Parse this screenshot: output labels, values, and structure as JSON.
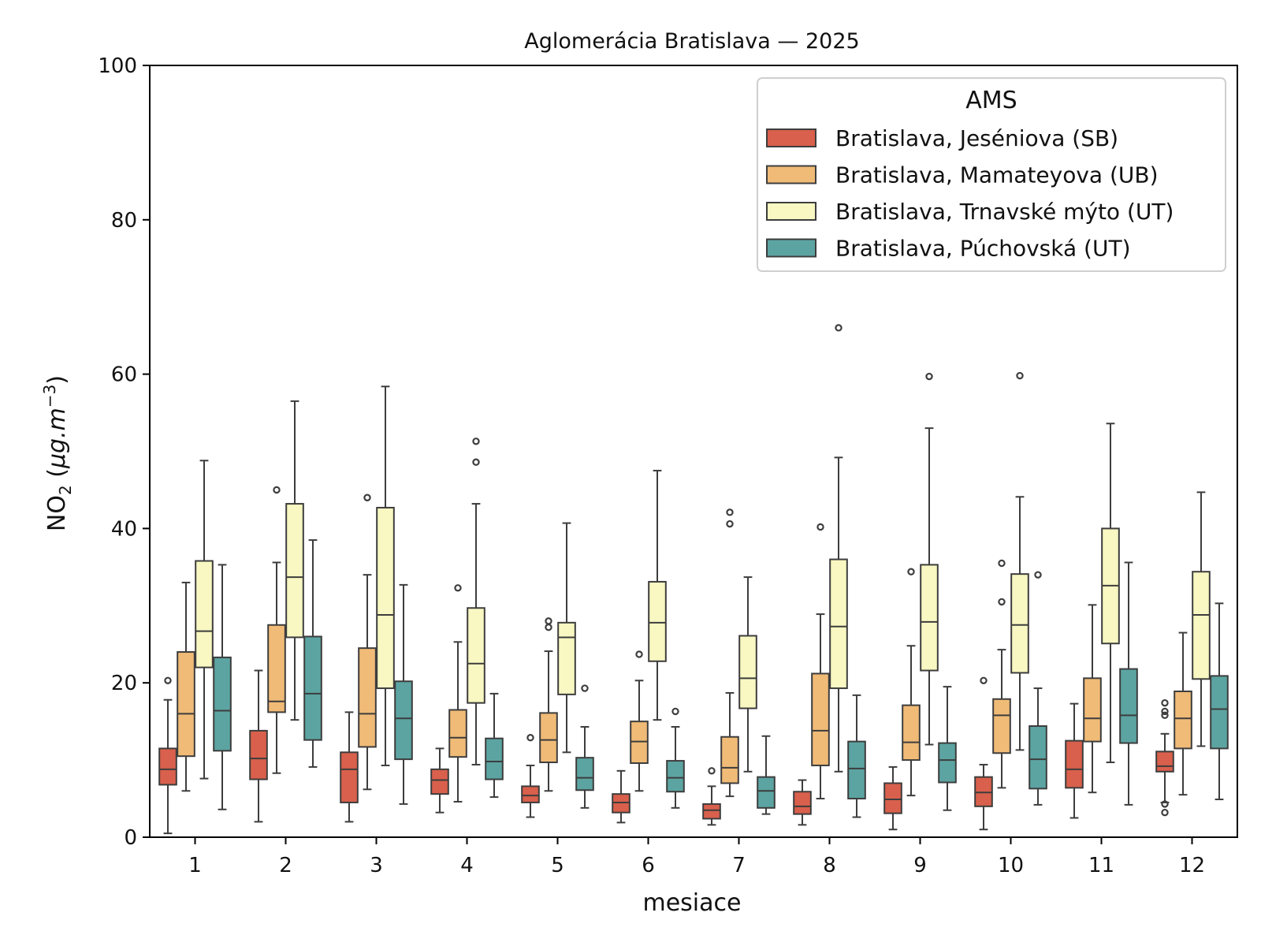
{
  "chart_data": {
    "type": "box",
    "title_main": "Aglomerácia Bratislava —",
    "title_year": "2025",
    "xlabel": "mesiace",
    "ylabel_main": "NO",
    "ylabel_sub": "2",
    "ylabel_unit_open": "(",
    "ylabel_unit_mu": "μ",
    "ylabel_unit_g": "g.",
    "ylabel_unit_m": "m",
    "ylabel_unit_exp": "−3",
    "ylabel_unit_close": ")",
    "ylim": [
      0,
      100
    ],
    "yticks": [
      "0",
      "20",
      "40",
      "60",
      "80",
      "100"
    ],
    "categories": [
      "1",
      "2",
      "3",
      "4",
      "5",
      "6",
      "7",
      "8",
      "9",
      "10",
      "11",
      "12"
    ],
    "legend": {
      "title": "AMS",
      "placement": "top-right"
    },
    "series": [
      {
        "name": "Bratislava, Jeséniova (SB)",
        "color": "#d9604c",
        "boxes": [
          {
            "whislo": 0.5,
            "q1": 6.8,
            "med": 8.8,
            "q3": 11.5,
            "whishi": 17.8,
            "fliers": [
              20.3
            ]
          },
          {
            "whislo": 2.0,
            "q1": 7.5,
            "med": 10.2,
            "q3": 13.8,
            "whishi": 21.6,
            "fliers": []
          },
          {
            "whislo": 2.0,
            "q1": 4.5,
            "med": 8.8,
            "q3": 11.0,
            "whishi": 16.2,
            "fliers": []
          },
          {
            "whislo": 3.2,
            "q1": 5.6,
            "med": 7.4,
            "q3": 8.8,
            "whishi": 11.5,
            "fliers": []
          },
          {
            "whislo": 2.6,
            "q1": 4.5,
            "med": 5.4,
            "q3": 6.6,
            "whishi": 9.3,
            "fliers": [
              12.9
            ]
          },
          {
            "whislo": 1.9,
            "q1": 3.2,
            "med": 4.5,
            "q3": 5.6,
            "whishi": 8.6,
            "fliers": []
          },
          {
            "whislo": 1.6,
            "q1": 2.4,
            "med": 3.5,
            "q3": 4.3,
            "whishi": 6.6,
            "fliers": [
              8.6
            ]
          },
          {
            "whislo": 1.6,
            "q1": 3.0,
            "med": 4.0,
            "q3": 5.9,
            "whishi": 7.4,
            "fliers": []
          },
          {
            "whislo": 1.0,
            "q1": 3.1,
            "med": 4.9,
            "q3": 7.0,
            "whishi": 9.1,
            "fliers": []
          },
          {
            "whislo": 1.0,
            "q1": 4.0,
            "med": 5.8,
            "q3": 7.8,
            "whishi": 9.4,
            "fliers": [
              20.3
            ]
          },
          {
            "whislo": 2.5,
            "q1": 6.4,
            "med": 8.8,
            "q3": 12.5,
            "whishi": 17.3,
            "fliers": []
          },
          {
            "whislo": 4.5,
            "q1": 8.5,
            "med": 9.2,
            "q3": 11.1,
            "whishi": 13.4,
            "fliers": [
              17.4,
              16.3,
              15.8,
              4.3,
              3.2
            ]
          }
        ]
      },
      {
        "name": "Bratislava, Mamateyova (UB)",
        "color": "#f0bb77",
        "boxes": [
          {
            "whislo": 6.0,
            "q1": 10.5,
            "med": 16.0,
            "q3": 24.0,
            "whishi": 33.0,
            "fliers": []
          },
          {
            "whislo": 8.3,
            "q1": 16.2,
            "med": 17.6,
            "q3": 27.5,
            "whishi": 35.6,
            "fliers": [
              45.0
            ]
          },
          {
            "whislo": 6.2,
            "q1": 11.7,
            "med": 16.0,
            "q3": 24.5,
            "whishi": 34.0,
            "fliers": [
              44.0
            ]
          },
          {
            "whislo": 4.6,
            "q1": 10.4,
            "med": 12.9,
            "q3": 16.5,
            "whishi": 25.3,
            "fliers": [
              32.3
            ]
          },
          {
            "whislo": 6.0,
            "q1": 9.7,
            "med": 12.6,
            "q3": 16.1,
            "whishi": 24.1,
            "fliers": [
              28.0,
              27.2
            ]
          },
          {
            "whislo": 6.0,
            "q1": 9.6,
            "med": 12.4,
            "q3": 15.0,
            "whishi": 20.3,
            "fliers": [
              23.7
            ]
          },
          {
            "whislo": 5.3,
            "q1": 7.0,
            "med": 9.0,
            "q3": 13.0,
            "whishi": 18.7,
            "fliers": [
              42.1,
              40.6
            ]
          },
          {
            "whislo": 5.0,
            "q1": 9.3,
            "med": 13.8,
            "q3": 21.2,
            "whishi": 28.9,
            "fliers": [
              40.2
            ]
          },
          {
            "whislo": 5.4,
            "q1": 10.0,
            "med": 12.3,
            "q3": 17.1,
            "whishi": 24.8,
            "fliers": [
              34.4
            ]
          },
          {
            "whislo": 6.4,
            "q1": 10.9,
            "med": 15.8,
            "q3": 17.9,
            "whishi": 24.3,
            "fliers": [
              35.5,
              30.5
            ]
          },
          {
            "whislo": 5.8,
            "q1": 12.4,
            "med": 15.4,
            "q3": 20.6,
            "whishi": 30.1,
            "fliers": []
          },
          {
            "whislo": 5.5,
            "q1": 11.5,
            "med": 15.4,
            "q3": 18.9,
            "whishi": 26.5,
            "fliers": []
          }
        ]
      },
      {
        "name": "Bratislava, Trnavské mýto (UT)",
        "color": "#f9f7c2",
        "boxes": [
          {
            "whislo": 7.6,
            "q1": 22.0,
            "med": 26.7,
            "q3": 35.8,
            "whishi": 48.8,
            "fliers": []
          },
          {
            "whislo": 15.2,
            "q1": 25.9,
            "med": 33.7,
            "q3": 43.2,
            "whishi": 56.5,
            "fliers": []
          },
          {
            "whislo": 9.3,
            "q1": 19.3,
            "med": 28.8,
            "q3": 42.7,
            "whishi": 58.4,
            "fliers": []
          },
          {
            "whislo": 9.4,
            "q1": 17.4,
            "med": 22.5,
            "q3": 29.7,
            "whishi": 43.2,
            "fliers": [
              51.3,
              48.6
            ]
          },
          {
            "whislo": 11.0,
            "q1": 18.5,
            "med": 25.9,
            "q3": 27.8,
            "whishi": 40.7,
            "fliers": []
          },
          {
            "whislo": 15.2,
            "q1": 22.8,
            "med": 27.8,
            "q3": 33.1,
            "whishi": 47.5,
            "fliers": []
          },
          {
            "whislo": 8.5,
            "q1": 16.7,
            "med": 20.6,
            "q3": 26.1,
            "whishi": 33.7,
            "fliers": []
          },
          {
            "whislo": 8.5,
            "q1": 19.3,
            "med": 27.3,
            "q3": 36.0,
            "whishi": 49.2,
            "fliers": [
              66.0
            ]
          },
          {
            "whislo": 12.0,
            "q1": 21.6,
            "med": 27.9,
            "q3": 35.3,
            "whishi": 53.0,
            "fliers": [
              59.7
            ]
          },
          {
            "whislo": 11.3,
            "q1": 21.3,
            "med": 27.5,
            "q3": 34.1,
            "whishi": 44.1,
            "fliers": [
              59.8
            ]
          },
          {
            "whislo": 9.7,
            "q1": 25.1,
            "med": 32.6,
            "q3": 40.0,
            "whishi": 53.6,
            "fliers": []
          },
          {
            "whislo": 11.8,
            "q1": 20.5,
            "med": 28.8,
            "q3": 34.4,
            "whishi": 44.7,
            "fliers": []
          }
        ]
      },
      {
        "name": "Bratislava, Púchovská (UT)",
        "color": "#5ca4a2",
        "boxes": [
          {
            "whislo": 3.6,
            "q1": 11.2,
            "med": 16.4,
            "q3": 23.3,
            "whishi": 35.3,
            "fliers": []
          },
          {
            "whislo": 9.1,
            "q1": 12.6,
            "med": 18.6,
            "q3": 26.0,
            "whishi": 38.5,
            "fliers": []
          },
          {
            "whislo": 4.3,
            "q1": 10.1,
            "med": 15.4,
            "q3": 20.2,
            "whishi": 32.7,
            "fliers": []
          },
          {
            "whislo": 5.2,
            "q1": 7.5,
            "med": 9.8,
            "q3": 12.8,
            "whishi": 18.6,
            "fliers": []
          },
          {
            "whislo": 3.8,
            "q1": 6.1,
            "med": 7.7,
            "q3": 10.3,
            "whishi": 14.3,
            "fliers": [
              19.3
            ]
          },
          {
            "whislo": 3.8,
            "q1": 5.9,
            "med": 7.7,
            "q3": 9.9,
            "whishi": 14.3,
            "fliers": [
              16.3
            ]
          },
          {
            "whislo": 3.0,
            "q1": 3.8,
            "med": 6.0,
            "q3": 7.8,
            "whishi": 13.1,
            "fliers": []
          },
          {
            "whislo": 2.6,
            "q1": 5.0,
            "med": 8.9,
            "q3": 12.4,
            "whishi": 18.4,
            "fliers": []
          },
          {
            "whislo": 3.5,
            "q1": 7.1,
            "med": 10.0,
            "q3": 12.2,
            "whishi": 19.5,
            "fliers": []
          },
          {
            "whislo": 4.2,
            "q1": 6.3,
            "med": 10.1,
            "q3": 14.4,
            "whishi": 19.3,
            "fliers": [
              34.0
            ]
          },
          {
            "whislo": 4.2,
            "q1": 12.2,
            "med": 15.8,
            "q3": 21.8,
            "whishi": 35.6,
            "fliers": []
          },
          {
            "whislo": 4.9,
            "q1": 11.5,
            "med": 16.6,
            "q3": 20.9,
            "whishi": 30.3,
            "fliers": []
          }
        ]
      }
    ]
  }
}
